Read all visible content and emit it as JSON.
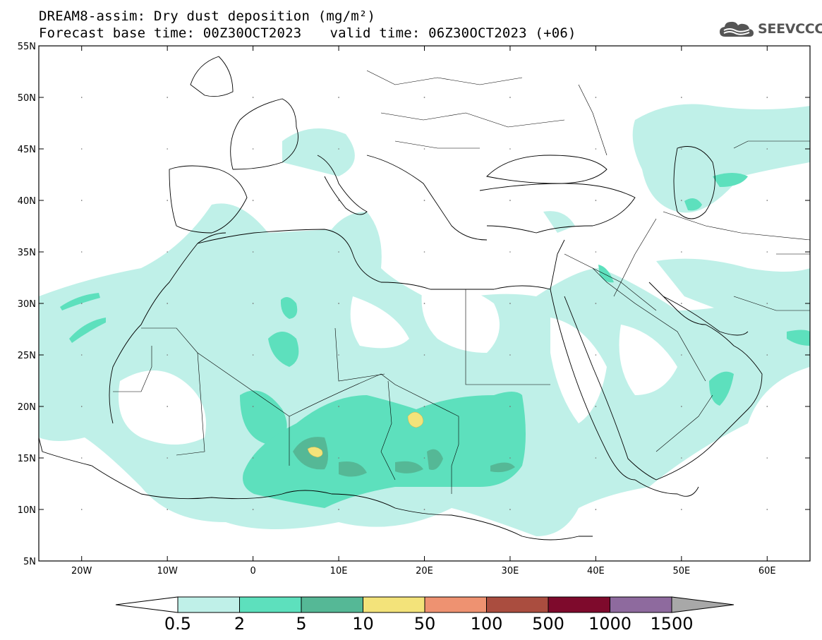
{
  "header": {
    "line1": "DREAM8-assim: Dry dust deposition (mg/m²)",
    "base_time": "Forecast base time: 00Z30OCT2023",
    "valid_time": "valid time: 06Z30OCT2023 (+06)"
  },
  "logo": {
    "text": "SEEVCCC",
    "icon": "cloud-icon"
  },
  "axes": {
    "lat_labels": [
      "55N",
      "50N",
      "45N",
      "40N",
      "35N",
      "30N",
      "25N",
      "20N",
      "15N",
      "10N",
      "5N"
    ],
    "lon_labels": [
      "20W",
      "10W",
      "0",
      "10E",
      "20E",
      "30E",
      "40E",
      "50E",
      "60E"
    ],
    "lon_range": [
      -25,
      65
    ],
    "lat_range": [
      5,
      55
    ]
  },
  "colorbar": {
    "levels": [
      "0.5",
      "2",
      "5",
      "10",
      "50",
      "100",
      "500",
      "1000",
      "1500"
    ],
    "colors": [
      "#bff0e8",
      "#5de0bd",
      "#55b896",
      "#f3e37a",
      "#ee9271",
      "#aa4d3f",
      "#7e0a2c",
      "#8e6a9e",
      "#a8a8a8"
    ],
    "under_color": "#ffffff"
  }
}
